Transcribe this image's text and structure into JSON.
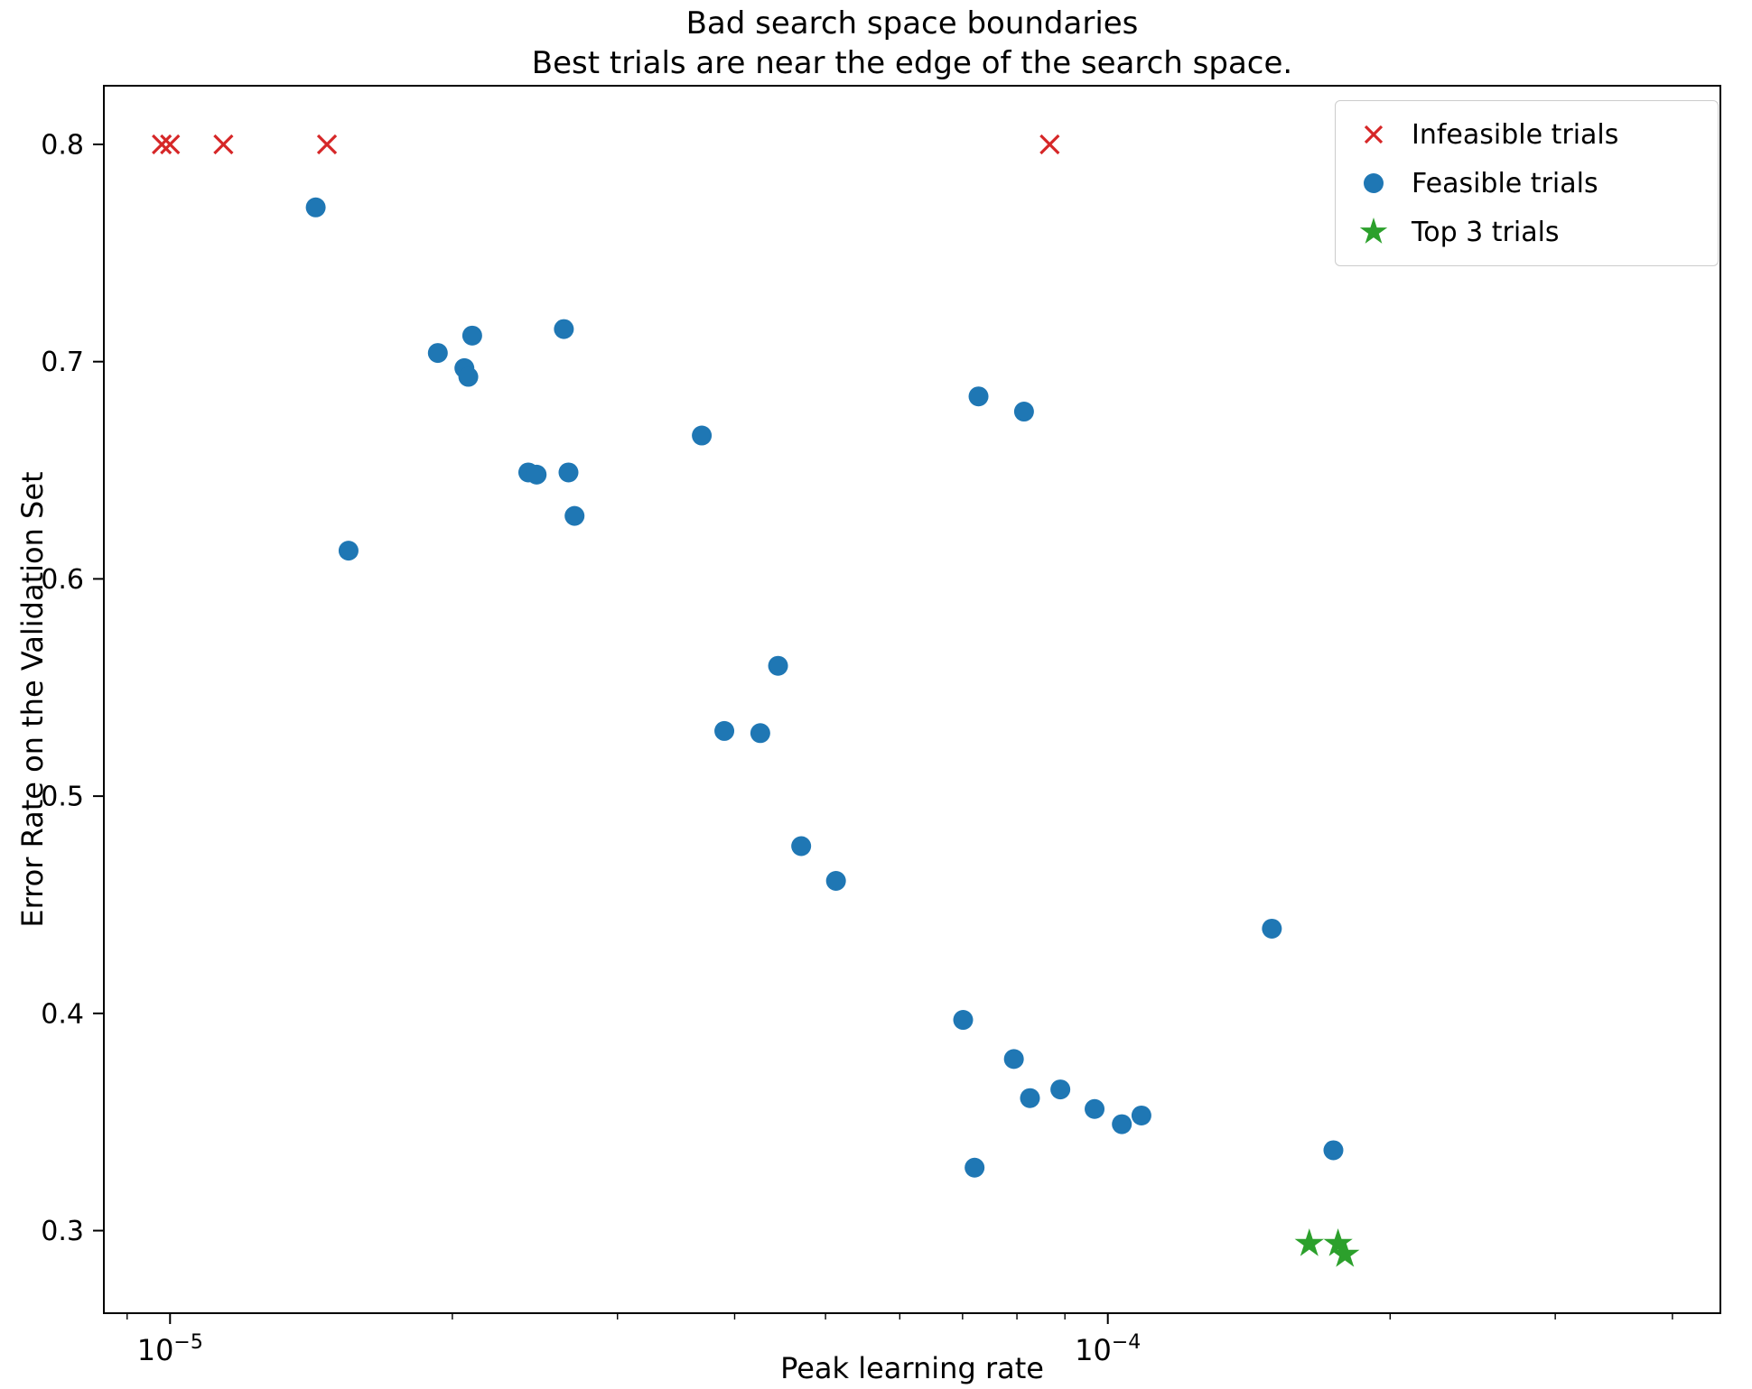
{
  "figure": {
    "background": "#ffffff"
  },
  "chart_data": {
    "type": "scatter",
    "title_line1": "Bad search space boundaries",
    "title_line2": "Best trials are near the edge of the search space.",
    "xlabel": "Peak learning rate",
    "ylabel": "Error Rate on the Validation Set",
    "x_scale": "log",
    "y_scale": "linear",
    "xlim": [
      8.5e-06,
      0.00045
    ],
    "ylim": [
      0.262,
      0.827
    ],
    "grid": false,
    "legend_position": "upper right",
    "y_ticks": [
      0.3,
      0.4,
      0.5,
      0.6,
      0.7,
      0.8
    ],
    "x_ticks": [
      {
        "value": 1e-05,
        "label_base": "10",
        "label_exp": "−5"
      },
      {
        "value": 0.0001,
        "label_base": "10",
        "label_exp": "−4"
      }
    ],
    "series": [
      {
        "name": "Infeasible trials",
        "marker": "x",
        "color": "#d62728",
        "points": [
          [
            9.8e-06,
            0.8
          ],
          [
            1e-05,
            0.8
          ],
          [
            1.14e-05,
            0.8
          ],
          [
            1.47e-05,
            0.8
          ],
          [
            8.67e-05,
            0.8
          ]
        ]
      },
      {
        "name": "Feasible trials",
        "marker": "circle",
        "color": "#1f77b4",
        "points": [
          [
            1.43e-05,
            0.771
          ],
          [
            1.55e-05,
            0.613
          ],
          [
            1.93e-05,
            0.704
          ],
          [
            2.06e-05,
            0.697
          ],
          [
            2.08e-05,
            0.693
          ],
          [
            2.1e-05,
            0.712
          ],
          [
            2.41e-05,
            0.649
          ],
          [
            2.46e-05,
            0.648
          ],
          [
            2.63e-05,
            0.715
          ],
          [
            2.66e-05,
            0.649
          ],
          [
            2.7e-05,
            0.629
          ],
          [
            3.69e-05,
            0.666
          ],
          [
            3.9e-05,
            0.53
          ],
          [
            4.26e-05,
            0.529
          ],
          [
            4.45e-05,
            0.56
          ],
          [
            4.71e-05,
            0.477
          ],
          [
            5.13e-05,
            0.461
          ],
          [
            7.01e-05,
            0.397
          ],
          [
            7.21e-05,
            0.329
          ],
          [
            7.28e-05,
            0.684
          ],
          [
            7.94e-05,
            0.379
          ],
          [
            8.14e-05,
            0.677
          ],
          [
            8.26e-05,
            0.361
          ],
          [
            8.9e-05,
            0.365
          ],
          [
            9.68e-05,
            0.356
          ],
          [
            0.0001035,
            0.349
          ],
          [
            0.0001086,
            0.353
          ],
          [
            0.0001496,
            0.439
          ],
          [
            0.000174,
            0.337
          ]
        ]
      },
      {
        "name": "Top 3 trials",
        "marker": "star",
        "color": "#2ca02c",
        "points": [
          [
            0.000164,
            0.294
          ],
          [
            0.000176,
            0.294
          ],
          [
            0.000179,
            0.289
          ]
        ]
      }
    ]
  }
}
